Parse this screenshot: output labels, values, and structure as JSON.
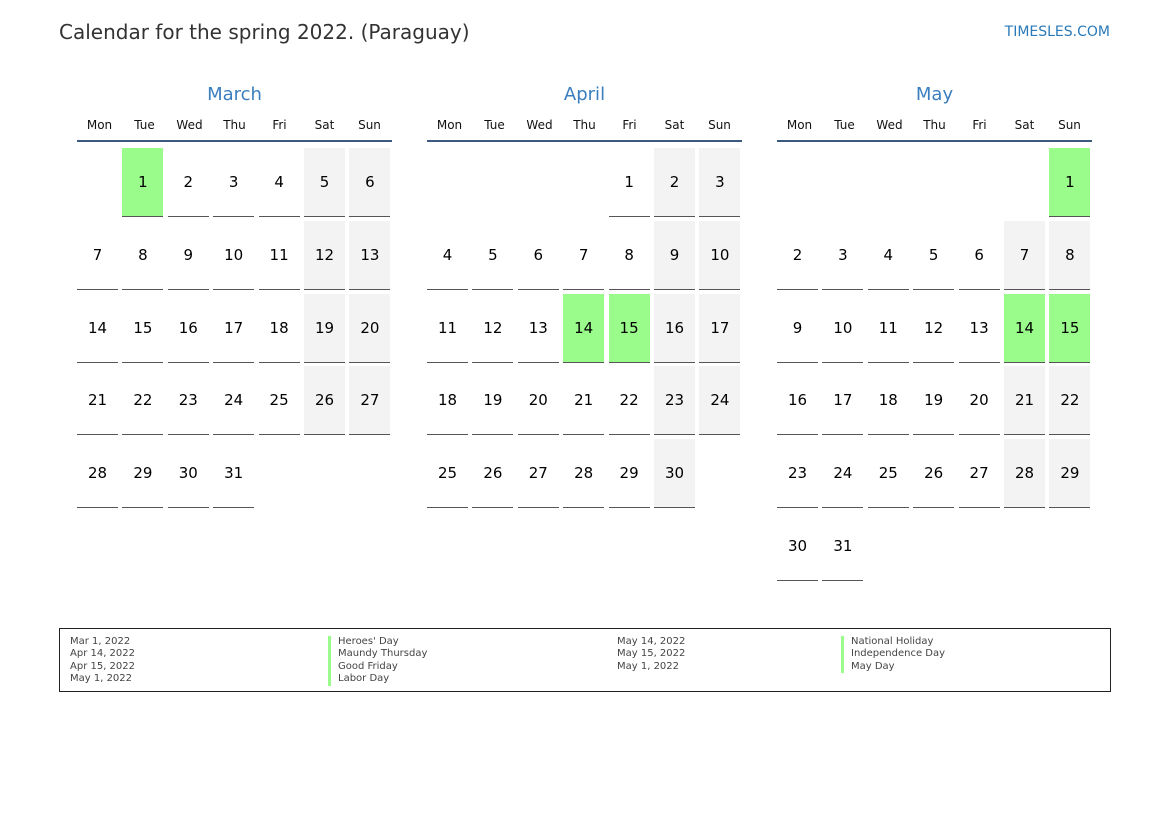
{
  "title": "Calendar for the spring 2022. (Paraguay)",
  "site": "TIMESLES.COM",
  "colors": {
    "holiday": "#9afc8b",
    "weekend": "#f3f3f3",
    "month_title": "#3a7ebf"
  },
  "weekdays": [
    "Mon",
    "Tue",
    "Wed",
    "Thu",
    "Fri",
    "Sat",
    "Sun"
  ],
  "months": [
    {
      "name": "March",
      "first_weekday_index": 1,
      "days": 31,
      "holidays": [
        1
      ]
    },
    {
      "name": "April",
      "first_weekday_index": 4,
      "days": 30,
      "holidays": [
        14,
        15
      ]
    },
    {
      "name": "May",
      "first_weekday_index": 6,
      "days": 31,
      "holidays": [
        1,
        14,
        15
      ]
    }
  ],
  "legend": {
    "left": {
      "dates": [
        "Mar 1, 2022",
        "Apr 14, 2022",
        "Apr 15, 2022",
        "May 1, 2022"
      ],
      "names": [
        "Heroes' Day",
        "Maundy Thursday",
        "Good Friday",
        "Labor Day"
      ]
    },
    "right": {
      "dates": [
        "May 14, 2022",
        "May 15, 2022",
        "May 1, 2022"
      ],
      "names": [
        "National Holiday",
        "Independence Day",
        "May Day"
      ]
    }
  }
}
